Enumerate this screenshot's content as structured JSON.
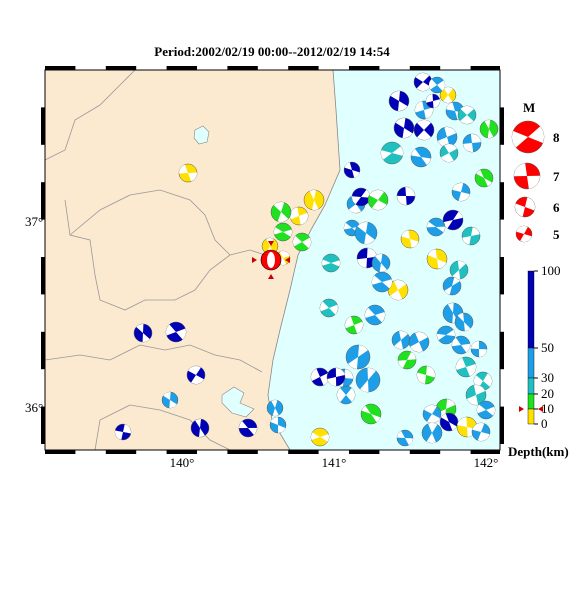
{
  "title": "Period:2002/02/19 00:00--2012/02/19 14:54",
  "latitude_labels": [
    "37°",
    "36°"
  ],
  "longitude_labels": [
    "140°",
    "141°",
    "142°"
  ],
  "magnitude_legend": {
    "title": "M",
    "labels": [
      "8",
      "7",
      "6",
      "5"
    ]
  },
  "depth_legend": {
    "ticks": [
      100,
      50,
      30,
      20,
      10,
      0
    ],
    "label": "Depth(km)"
  }
}
